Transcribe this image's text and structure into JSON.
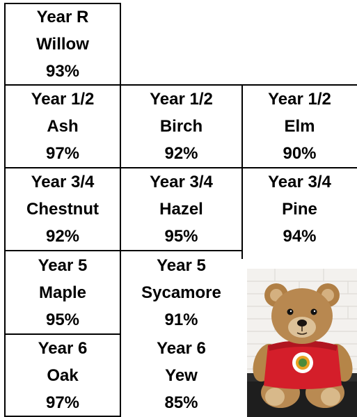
{
  "rows": [
    [
      {
        "year": "Year R",
        "class": "Willow",
        "attendance": "93%"
      }
    ],
    [
      {
        "year": "Year 1/2",
        "class": "Ash",
        "attendance": "97%"
      },
      {
        "year": "Year 1/2",
        "class": "Birch",
        "attendance": "92%"
      },
      {
        "year": "Year 1/2",
        "class": "Elm",
        "attendance": "90%"
      }
    ],
    [
      {
        "year": "Year 3/4",
        "class": "Chestnut",
        "attendance": "92%"
      },
      {
        "year": "Year 3/4",
        "class": "Hazel",
        "attendance": "95%"
      },
      {
        "year": "Year 3/4",
        "class": "Pine",
        "attendance": "94%"
      }
    ],
    [
      {
        "year": "Year 5",
        "class": "Maple",
        "attendance": "95%"
      },
      {
        "year": "Year 5",
        "class": "Sycamore",
        "attendance": "91%"
      }
    ],
    [
      {
        "year": "Year 6",
        "class": "Oak",
        "attendance": "97%"
      },
      {
        "year": "Year 6",
        "class": "Yew",
        "attendance": "85%"
      }
    ]
  ],
  "photo": {
    "subject": "teddy-bear-icon"
  }
}
